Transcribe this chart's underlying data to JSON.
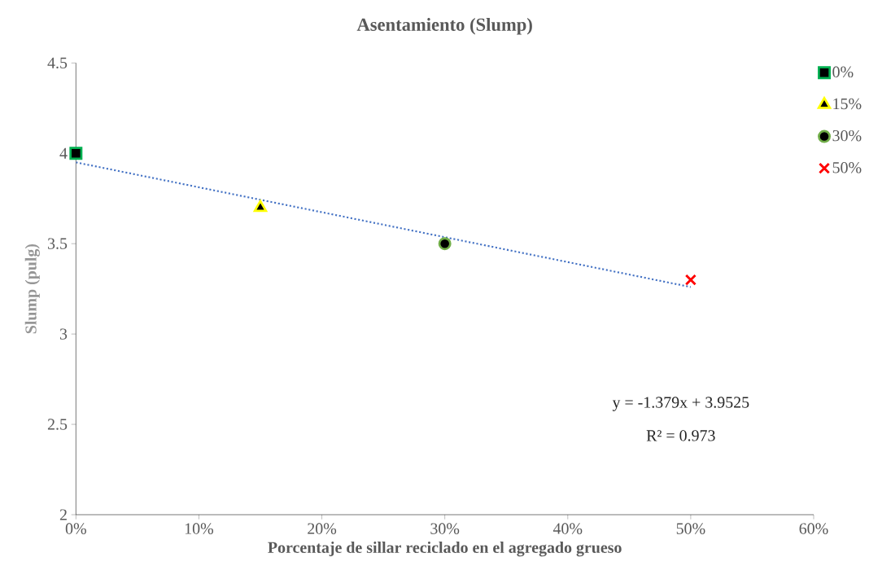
{
  "chart_data": {
    "type": "scatter",
    "title": "Asentamiento (Slump)",
    "xlabel": "Porcentaje de sillar  reciclado en el agregado grueso",
    "ylabel": "Slump (pulg)",
    "xlim": [
      0,
      0.6
    ],
    "ylim": [
      2,
      4.5
    ],
    "xticks": [
      {
        "value": 0,
        "label": "0%"
      },
      {
        "value": 0.1,
        "label": "10%"
      },
      {
        "value": 0.2,
        "label": "20%"
      },
      {
        "value": 0.3,
        "label": "30%"
      },
      {
        "value": 0.4,
        "label": "40%"
      },
      {
        "value": 0.5,
        "label": "50%"
      },
      {
        "value": 0.6,
        "label": "60%"
      }
    ],
    "yticks": [
      2,
      2.5,
      3,
      3.5,
      4,
      4.5
    ],
    "grid": false,
    "legend": "top right",
    "series": [
      {
        "name": "0%",
        "color": "#00b050",
        "marker": "square",
        "x": [
          0
        ],
        "values": [
          4.0
        ]
      },
      {
        "name": "15%",
        "color": "#ffff00",
        "marker": "triangle",
        "x": [
          0.15
        ],
        "values": [
          3.7
        ]
      },
      {
        "name": "30%",
        "color": "#70ad47",
        "marker": "circle",
        "x": [
          0.3
        ],
        "values": [
          3.5
        ]
      },
      {
        "name": "50%",
        "color": "#ff0000",
        "marker": "cross",
        "x": [
          0.5
        ],
        "values": [
          3.3
        ]
      },
      {
        "type": "line",
        "color": "#4472c4",
        "line_style": "dotted",
        "marker": "none",
        "x": [
          0,
          0.5
        ],
        "values": [
          3.95,
          3.26
        ]
      }
    ],
    "annotations": [
      "y = -1.379x + 3.9525",
      "R² = 0.973"
    ]
  }
}
